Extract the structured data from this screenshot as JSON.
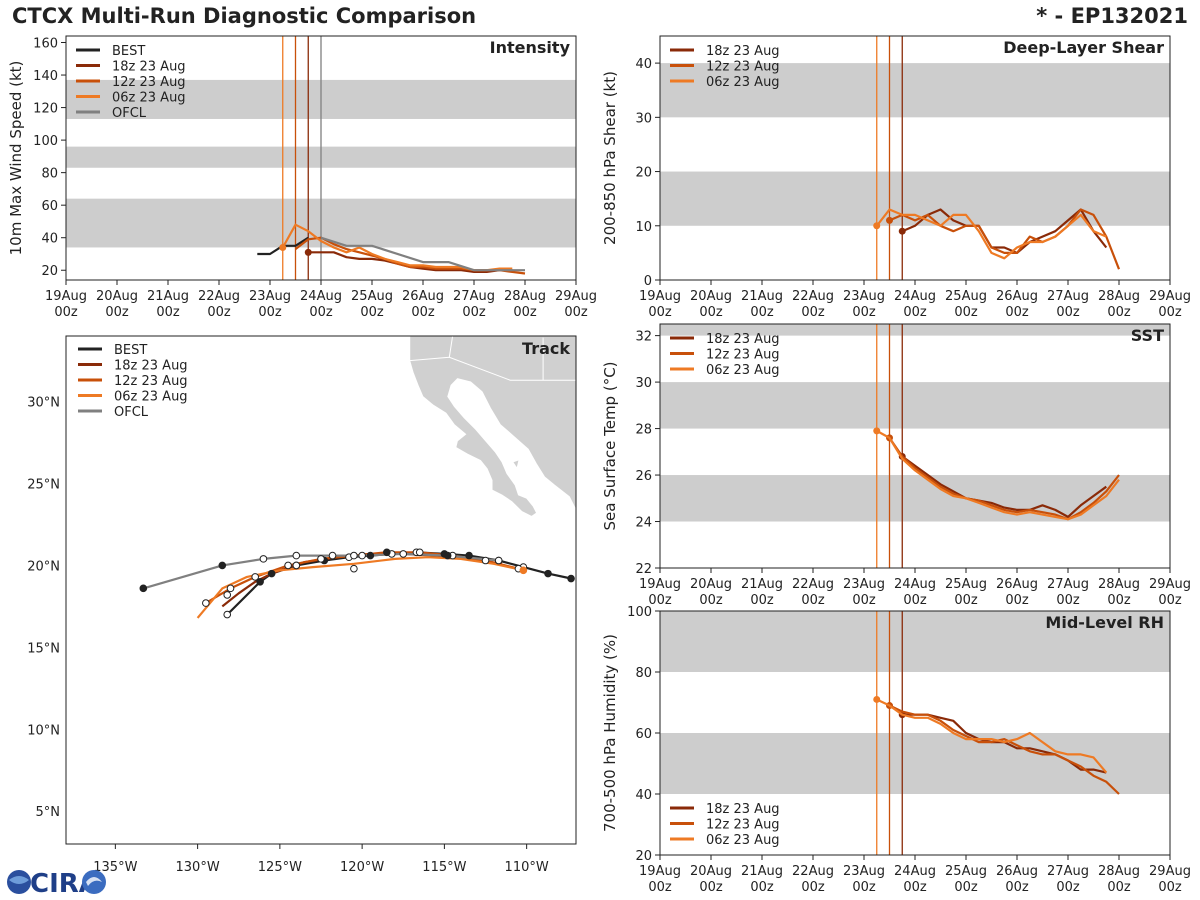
{
  "title_left": "CTCX Multi-Run Diagnostic Comparison",
  "title_right": "* - EP132021",
  "logo_text": "CIRA",
  "colors": {
    "BEST": "#222222",
    "18z 23 Aug": "#8a2a08",
    "12z 23 Aug": "#c8500a",
    "06z 23 Aug": "#ee7a24",
    "OFCL": "#808080",
    "band": "#cdcdcd",
    "land": "#d0d0d0"
  },
  "time_axis": {
    "ticks": [
      19,
      20,
      21,
      22,
      23,
      24,
      25,
      26,
      27,
      28,
      29
    ],
    "tick_labels_top": [
      "19Aug",
      "20Aug",
      "21Aug",
      "22Aug",
      "23Aug",
      "24Aug",
      "25Aug",
      "26Aug",
      "27Aug",
      "28Aug",
      "29Aug"
    ],
    "tick_labels_bottom": [
      "00z",
      "00z",
      "00z",
      "00z",
      "00z",
      "00z",
      "00z",
      "00z",
      "00z",
      "00z",
      "00z"
    ],
    "xlim": [
      19,
      29
    ]
  },
  "chart_data": [
    {
      "id": "intensity",
      "type": "line",
      "title": "Intensity",
      "ylabel": "10m Max Wind Speed (kt)",
      "ylim": [
        14,
        164
      ],
      "yticks": [
        20,
        40,
        60,
        80,
        100,
        120,
        140,
        160
      ],
      "bands": [
        [
          34,
          64
        ],
        [
          83,
          96
        ],
        [
          113,
          137
        ]
      ],
      "vlines": [
        {
          "x": 23.25,
          "series": "06z 23 Aug"
        },
        {
          "x": 23.5,
          "series": "12z 23 Aug"
        },
        {
          "x": 23.75,
          "series": "18z 23 Aug"
        },
        {
          "x": 24.0,
          "series": "OFCL"
        }
      ],
      "legend": [
        "BEST",
        "18z 23 Aug",
        "12z 23 Aug",
        "06z 23 Aug",
        "OFCL"
      ],
      "legend_position": "top-left",
      "series": [
        {
          "name": "BEST",
          "x": [
            22.75,
            23.0,
            23.25,
            23.5,
            23.75
          ],
          "y": [
            30,
            30,
            35,
            35,
            40
          ]
        },
        {
          "name": "18z 23 Aug",
          "marker": [
            23.75,
            31
          ],
          "x": [
            23.75,
            24.0,
            24.25,
            24.5,
            24.75,
            25.0,
            25.25,
            25.5,
            25.75,
            26.0,
            26.25,
            26.5,
            26.75,
            27.0,
            27.25,
            27.5,
            27.75
          ],
          "y": [
            31,
            31,
            31,
            28,
            27,
            27,
            26,
            24,
            22,
            21,
            20,
            20,
            20,
            19,
            19,
            20,
            20
          ]
        },
        {
          "name": "12z 23 Aug",
          "x": [
            23.5,
            23.75,
            24.0,
            24.25,
            24.5,
            24.75,
            25.0,
            25.25,
            25.5,
            25.75,
            26.0,
            26.25,
            26.5,
            26.75,
            27.0,
            27.25,
            27.5,
            27.75,
            28.0
          ],
          "y": [
            33,
            39,
            40,
            36,
            33,
            31,
            29,
            27,
            24,
            22,
            22,
            21,
            21,
            21,
            20,
            20,
            20,
            19,
            18
          ]
        },
        {
          "name": "06z 23 Aug",
          "marker": [
            23.25,
            34
          ],
          "x": [
            23.25,
            23.5,
            23.75,
            24.0,
            24.25,
            24.5,
            24.75,
            25.0,
            25.25,
            25.5,
            25.75,
            26.0,
            26.25,
            26.5,
            26.75,
            27.0,
            27.25,
            27.5,
            27.75
          ],
          "y": [
            34,
            48,
            44,
            38,
            34,
            31,
            34,
            30,
            27,
            25,
            23,
            23,
            22,
            22,
            22,
            20,
            20,
            21,
            21
          ]
        },
        {
          "name": "OFCL",
          "x": [
            24.0,
            24.5,
            25.0,
            26.0,
            26.5,
            27.0,
            27.5,
            28.0
          ],
          "y": [
            40,
            35,
            35,
            25,
            25,
            20,
            20,
            20
          ]
        }
      ]
    },
    {
      "id": "shear",
      "type": "line",
      "title": "Deep-Layer Shear",
      "ylabel": "200-850 hPa Shear (kt)",
      "ylim": [
        0,
        45
      ],
      "yticks": [
        0,
        10,
        20,
        30,
        40
      ],
      "bands": [
        [
          10,
          20
        ],
        [
          30,
          40
        ]
      ],
      "vlines": [
        {
          "x": 23.25,
          "series": "06z 23 Aug"
        },
        {
          "x": 23.5,
          "series": "12z 23 Aug"
        },
        {
          "x": 23.75,
          "series": "18z 23 Aug"
        }
      ],
      "legend": [
        "18z 23 Aug",
        "12z 23 Aug",
        "06z 23 Aug"
      ],
      "legend_position": "top-left",
      "series": [
        {
          "name": "18z 23 Aug",
          "marker": [
            23.75,
            9
          ],
          "x": [
            23.75,
            24.0,
            24.25,
            24.5,
            24.75,
            25.0,
            25.25,
            25.5,
            25.75,
            26.0,
            26.25,
            26.5,
            26.75,
            27.0,
            27.25,
            27.5,
            27.75
          ],
          "y": [
            9,
            10,
            12,
            13,
            11,
            10,
            10,
            6,
            6,
            5,
            7,
            8,
            9,
            11,
            13,
            9,
            6
          ]
        },
        {
          "name": "12z 23 Aug",
          "marker": [
            23.5,
            11
          ],
          "x": [
            23.5,
            23.75,
            24.0,
            24.25,
            24.5,
            24.75,
            25.0,
            25.25,
            25.5,
            25.75,
            26.0,
            26.25,
            26.5,
            26.75,
            27.0,
            27.25,
            27.5,
            27.75,
            28.0
          ],
          "y": [
            11,
            12,
            11,
            12,
            10,
            9,
            10,
            10,
            6,
            5,
            5,
            8,
            7,
            8,
            10,
            13,
            12,
            8,
            2
          ]
        },
        {
          "name": "06z 23 Aug",
          "marker": [
            23.25,
            10
          ],
          "x": [
            23.25,
            23.5,
            23.75,
            24.0,
            24.25,
            24.5,
            24.75,
            25.0,
            25.25,
            25.5,
            25.75,
            26.0,
            26.25,
            26.5,
            26.75,
            27.0,
            27.25,
            27.5,
            27.75
          ],
          "y": [
            10,
            13,
            12,
            12,
            11,
            10,
            12,
            12,
            9,
            5,
            4,
            6,
            7,
            7,
            8,
            10,
            12,
            9,
            8
          ]
        }
      ]
    },
    {
      "id": "sst",
      "type": "line",
      "title": "SST",
      "ylabel": "Sea Surface Temp (°C)",
      "ylim": [
        22,
        32.5
      ],
      "yticks": [
        22,
        24,
        26,
        28,
        30,
        32
      ],
      "bands": [
        [
          24,
          26
        ],
        [
          28,
          30
        ],
        [
          32,
          32.5
        ]
      ],
      "vlines": [
        {
          "x": 23.25,
          "series": "06z 23 Aug"
        },
        {
          "x": 23.5,
          "series": "12z 23 Aug"
        },
        {
          "x": 23.75,
          "series": "18z 23 Aug"
        }
      ],
      "legend": [
        "18z 23 Aug",
        "12z 23 Aug",
        "06z 23 Aug"
      ],
      "legend_position": "top-left",
      "series": [
        {
          "name": "18z 23 Aug",
          "marker": [
            23.75,
            26.8
          ],
          "x": [
            23.75,
            24.0,
            24.25,
            24.5,
            24.75,
            25.0,
            25.25,
            25.5,
            25.75,
            26.0,
            26.25,
            26.5,
            26.75,
            27.0,
            27.25,
            27.5,
            27.75
          ],
          "y": [
            26.8,
            26.4,
            26.0,
            25.6,
            25.3,
            25.0,
            24.9,
            24.8,
            24.6,
            24.5,
            24.5,
            24.7,
            24.5,
            24.2,
            24.7,
            25.1,
            25.5
          ]
        },
        {
          "name": "12z 23 Aug",
          "marker": [
            23.5,
            27.6
          ],
          "x": [
            23.5,
            23.75,
            24.0,
            24.25,
            24.5,
            24.75,
            25.0,
            25.25,
            25.5,
            25.75,
            26.0,
            26.25,
            26.5,
            26.75,
            27.0,
            27.25,
            27.5,
            27.75,
            28.0
          ],
          "y": [
            27.6,
            26.8,
            26.3,
            25.9,
            25.5,
            25.2,
            25.0,
            24.9,
            24.7,
            24.5,
            24.4,
            24.5,
            24.4,
            24.3,
            24.1,
            24.4,
            24.8,
            25.3,
            26.0
          ]
        },
        {
          "name": "06z 23 Aug",
          "marker": [
            23.25,
            27.9
          ],
          "x": [
            23.25,
            23.5,
            23.75,
            24.0,
            24.25,
            24.5,
            24.75,
            25.0,
            25.25,
            25.5,
            25.75,
            26.0,
            26.25,
            26.5,
            26.75,
            27.0,
            27.25,
            27.5,
            27.75,
            28.0
          ],
          "y": [
            27.9,
            27.6,
            26.7,
            26.2,
            25.8,
            25.4,
            25.1,
            25.0,
            24.8,
            24.6,
            24.4,
            24.3,
            24.4,
            24.3,
            24.2,
            24.1,
            24.3,
            24.7,
            25.1,
            25.8
          ]
        }
      ]
    },
    {
      "id": "rh",
      "type": "line",
      "title": "Mid-Level RH",
      "ylabel": "700-500 hPa Humidity (%)",
      "ylim": [
        20,
        100
      ],
      "yticks": [
        20,
        40,
        60,
        80,
        100
      ],
      "bands": [
        [
          40,
          60
        ],
        [
          80,
          100
        ]
      ],
      "vlines": [
        {
          "x": 23.25,
          "series": "06z 23 Aug"
        },
        {
          "x": 23.5,
          "series": "12z 23 Aug"
        },
        {
          "x": 23.75,
          "series": "18z 23 Aug"
        }
      ],
      "legend": [
        "18z 23 Aug",
        "12z 23 Aug",
        "06z 23 Aug"
      ],
      "legend_position": "bottom-left",
      "series": [
        {
          "name": "18z 23 Aug",
          "marker": [
            23.75,
            66
          ],
          "x": [
            23.75,
            24.0,
            24.25,
            24.5,
            24.75,
            25.0,
            25.25,
            25.5,
            25.75,
            26.0,
            26.25,
            26.5,
            26.75,
            27.0,
            27.25,
            27.5,
            27.75
          ],
          "y": [
            66,
            66,
            66,
            65,
            64,
            60,
            58,
            57,
            57,
            55,
            55,
            54,
            53,
            51,
            48,
            48,
            47
          ]
        },
        {
          "name": "12z 23 Aug",
          "marker": [
            23.5,
            69
          ],
          "x": [
            23.5,
            23.75,
            24.0,
            24.25,
            24.5,
            24.75,
            25.0,
            25.25,
            25.5,
            25.75,
            26.0,
            26.25,
            26.5,
            26.75,
            27.0,
            27.25,
            27.5,
            27.75,
            28.0
          ],
          "y": [
            69,
            67,
            66,
            66,
            64,
            61,
            59,
            57,
            57,
            58,
            56,
            54,
            53,
            53,
            51,
            49,
            46,
            44,
            40
          ]
        },
        {
          "name": "06z 23 Aug",
          "marker": [
            23.25,
            71
          ],
          "x": [
            23.25,
            23.5,
            23.75,
            24.0,
            24.25,
            24.5,
            24.75,
            25.0,
            25.25,
            25.5,
            25.75,
            26.0,
            26.25,
            26.5,
            26.75,
            27.0,
            27.25,
            27.5,
            27.75
          ],
          "y": [
            71,
            69,
            66,
            65,
            65,
            63,
            60,
            58,
            58,
            58,
            57,
            58,
            60,
            57,
            54,
            53,
            53,
            52,
            47
          ]
        }
      ]
    },
    {
      "id": "track",
      "type": "scatter",
      "title": "Track",
      "xlim": [
        -138,
        -107
      ],
      "ylim": [
        3,
        34
      ],
      "xticks": [
        -135,
        -130,
        -125,
        -120,
        -115,
        -110
      ],
      "xtick_labels": [
        "135°W",
        "130°W",
        "125°W",
        "120°W",
        "115°W",
        "110°W"
      ],
      "yticks": [
        5,
        10,
        15,
        20,
        25,
        30
      ],
      "ytick_labels": [
        "5°N",
        "10°N",
        "15°N",
        "20°N",
        "25°N",
        "30°N"
      ],
      "legend": [
        "BEST",
        "18z 23 Aug",
        "12z 23 Aug",
        "06z 23 Aug",
        "OFCL"
      ],
      "legend_position": "top-left",
      "series": [
        {
          "name": "BEST",
          "lon": [
            -107.3,
            -108.7,
            -110.2,
            -111.7,
            -113.5,
            -115.0,
            -116.7,
            -118.2,
            -119.5,
            -120.8,
            -122.3,
            -124.0,
            -125.5,
            -126.2,
            -128.2
          ],
          "lat": [
            19.2,
            19.5,
            19.9,
            20.3,
            20.6,
            20.7,
            20.8,
            20.7,
            20.6,
            20.5,
            20.3,
            20.0,
            19.5,
            19.0,
            17.0
          ],
          "filled": [
            1,
            1,
            0,
            0,
            1,
            1,
            0,
            0,
            1,
            0,
            1,
            0,
            1,
            1,
            0
          ]
        },
        {
          "name": "18z 23 Aug",
          "lon": [
            -111.5,
            -113.5,
            -115.5,
            -117.5,
            -119.5,
            -121.5,
            -123.5,
            -125.5,
            -126.5,
            -127.5,
            -128.5
          ],
          "lat": [
            20.1,
            20.4,
            20.6,
            20.7,
            20.7,
            20.5,
            20.2,
            19.5,
            19.0,
            18.3,
            17.5
          ]
        },
        {
          "name": "12z 23 Aug",
          "lon": [
            -110.5,
            -112.5,
            -114.5,
            -116.5,
            -118.5,
            -120.5,
            -122.5,
            -124.5,
            -126.5,
            -128.0,
            -129.5
          ],
          "lat": [
            19.8,
            20.3,
            20.6,
            20.8,
            20.8,
            20.6,
            20.4,
            20.0,
            19.3,
            18.6,
            17.7
          ],
          "filled": [
            0,
            0,
            0,
            0,
            1,
            0,
            0,
            0,
            0,
            0,
            0
          ]
        },
        {
          "name": "06z 23 Aug",
          "lon": [
            -110.2,
            -112.0,
            -114.0,
            -116.0,
            -118.0,
            -120.5,
            -123.0,
            -125.0,
            -127.0,
            -128.5,
            -130.0
          ],
          "lat": [
            19.7,
            20.1,
            20.4,
            20.5,
            20.4,
            20.1,
            19.9,
            19.7,
            19.3,
            18.6,
            16.8
          ],
          "markers": [
            [
              -110.2,
              19.7,
              1
            ],
            [
              -120.5,
              19.8,
              0
            ],
            [
              -124.0,
              20.0,
              0
            ],
            [
              -128.2,
              18.2,
              0
            ]
          ]
        },
        {
          "name": "OFCL",
          "lon": [
            -111.7,
            -114.8,
            -117.5,
            -120.0,
            -121.8,
            -124.0,
            -126.0,
            -128.5,
            -133.3
          ],
          "lat": [
            20.3,
            20.6,
            20.7,
            20.6,
            20.6,
            20.6,
            20.4,
            20.0,
            18.6
          ],
          "filled": [
            0,
            1,
            0,
            0,
            0,
            0,
            0,
            1,
            1
          ]
        }
      ]
    }
  ]
}
